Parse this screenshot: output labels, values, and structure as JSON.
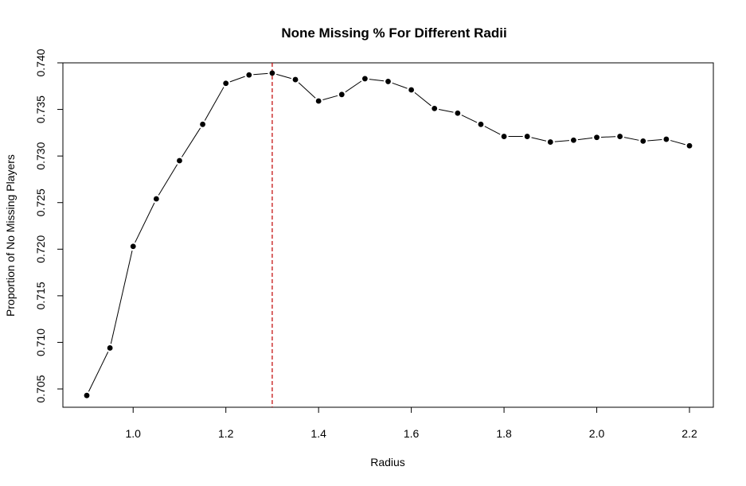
{
  "chart_data": {
    "type": "line",
    "title": "None Missing % For Different Radii",
    "xlabel": "Radius",
    "ylabel": "Proportion of No Missing Players",
    "xlim": [
      0.9,
      2.2
    ],
    "ylim": [
      0.7043,
      0.7389
    ],
    "grid": false,
    "xticks": [
      {
        "value": 1.0,
        "label": "1.0"
      },
      {
        "value": 1.2,
        "label": "1.2"
      },
      {
        "value": 1.4,
        "label": "1.4"
      },
      {
        "value": 1.6,
        "label": "1.6"
      },
      {
        "value": 1.8,
        "label": "1.8"
      },
      {
        "value": 2.0,
        "label": "2.0"
      },
      {
        "value": 2.2,
        "label": "2.2"
      }
    ],
    "yticks": [
      {
        "value": 0.705,
        "label": "0.705"
      },
      {
        "value": 0.71,
        "label": "0.710"
      },
      {
        "value": 0.715,
        "label": "0.715"
      },
      {
        "value": 0.72,
        "label": "0.720"
      },
      {
        "value": 0.725,
        "label": "0.725"
      },
      {
        "value": 0.73,
        "label": "0.730"
      },
      {
        "value": 0.735,
        "label": "0.735"
      },
      {
        "value": 0.74,
        "label": "0.740"
      }
    ],
    "x": [
      0.9,
      0.95,
      1.0,
      1.05,
      1.1,
      1.15,
      1.2,
      1.25,
      1.3,
      1.35,
      1.4,
      1.45,
      1.5,
      1.55,
      1.6,
      1.65,
      1.7,
      1.75,
      1.8,
      1.85,
      1.9,
      1.95,
      2.0,
      2.05,
      2.1,
      2.15,
      2.2
    ],
    "y": [
      0.7043,
      0.7094,
      0.7203,
      0.7254,
      0.7295,
      0.7334,
      0.7378,
      0.7387,
      0.7389,
      0.7382,
      0.7359,
      0.7366,
      0.7383,
      0.738,
      0.7371,
      0.7351,
      0.7346,
      0.7334,
      0.7321,
      0.7321,
      0.7315,
      0.7317,
      0.732,
      0.7321,
      0.7316,
      0.7318,
      0.7311
    ],
    "reference_line": {
      "x": 1.3,
      "color": "#c00000",
      "style": "dashed"
    },
    "series_color": "#000000"
  }
}
